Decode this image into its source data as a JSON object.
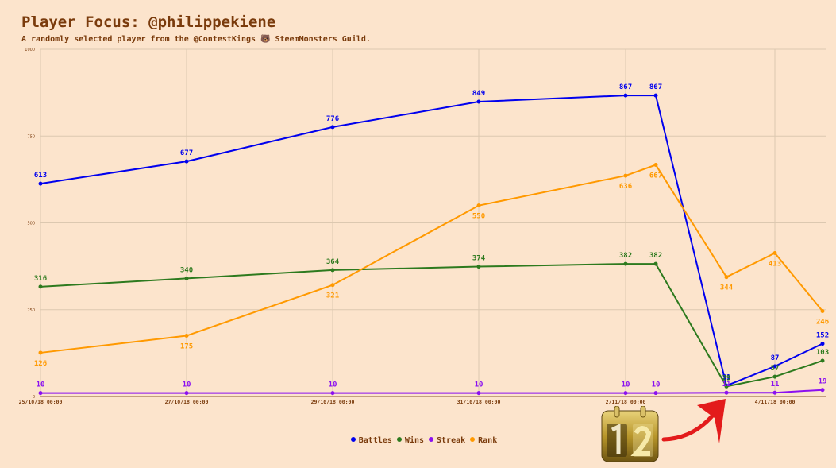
{
  "header": {
    "title": "Player Focus: @philippekiene",
    "subtitle": "A randomly selected player from the @ContestKings 🐻 SteemMonsters Guild."
  },
  "icons": {
    "calendar": "calendar-12-icon",
    "arrow": "red-arrow-icon"
  },
  "chart_data": {
    "type": "line",
    "x": [
      "25/10/18 00:00",
      "27/10/18 00:00",
      "29/10/18 00:00",
      "31/10/18 00:00",
      "2/11/18 00:00",
      "2/11/18 12:00",
      "3/11/18 12:00",
      "4/11/18 00:00",
      "4/11/18 16:00"
    ],
    "xticks": [
      "25/10/18 00:00",
      "27/10/18 00:00",
      "29/10/18 00:00",
      "31/10/18 00:00",
      "2/11/18 00:00",
      "4/11/18 00:00"
    ],
    "yticks": [
      0,
      250,
      500,
      750,
      1000
    ],
    "ylim": [
      0,
      1000
    ],
    "grid": true,
    "legend": "bottom",
    "series": [
      {
        "name": "Battles",
        "color": "#0000ee",
        "values": [
          613,
          677,
          776,
          849,
          867,
          867,
          31,
          87,
          152
        ]
      },
      {
        "name": "Wins",
        "color": "#2d7a1e",
        "values": [
          316,
          340,
          364,
          374,
          382,
          382,
          29,
          57,
          103
        ]
      },
      {
        "name": "Streak",
        "color": "#8b10f0",
        "values": [
          10,
          10,
          10,
          10,
          10,
          10,
          11,
          11,
          19
        ]
      },
      {
        "name": "Rank",
        "color": "#ff9900",
        "values": [
          126,
          175,
          321,
          550,
          636,
          667,
          344,
          413,
          246
        ]
      }
    ]
  }
}
